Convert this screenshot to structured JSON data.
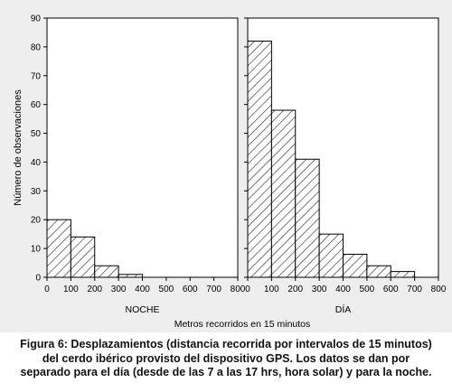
{
  "chart_data": {
    "type": "bar",
    "ylabel": "Número de observaciones",
    "xlabel": "Metros recorridos en 15 minutos",
    "ylim": [
      0,
      90
    ],
    "yticks": [
      0,
      10,
      20,
      30,
      40,
      50,
      60,
      70,
      80,
      90
    ],
    "xlim": [
      0,
      800
    ],
    "xticks": [
      0,
      100,
      200,
      300,
      400,
      500,
      600,
      700,
      800
    ],
    "xtick_labels": [
      "0",
      "100",
      "200",
      "300",
      "400",
      "500",
      "600",
      "700",
      "800"
    ],
    "bin_width": 100,
    "grid": false,
    "colors": {
      "bar_fill": "#ffffff",
      "hatch": "#222222",
      "background": "#eeeeee",
      "axis": "#000000"
    },
    "panels": [
      {
        "panel_label": "NOCHE",
        "bins": [
          {
            "x0": 0,
            "x1": 100,
            "value": 20
          },
          {
            "x0": 100,
            "x1": 200,
            "value": 14
          },
          {
            "x0": 200,
            "x1": 300,
            "value": 4
          },
          {
            "x0": 300,
            "x1": 400,
            "value": 1
          }
        ]
      },
      {
        "panel_label": "DÍA",
        "bins": [
          {
            "x0": 0,
            "x1": 100,
            "value": 82
          },
          {
            "x0": 100,
            "x1": 200,
            "value": 58
          },
          {
            "x0": 200,
            "x1": 300,
            "value": 41
          },
          {
            "x0": 300,
            "x1": 400,
            "value": 15
          },
          {
            "x0": 400,
            "x1": 500,
            "value": 8
          },
          {
            "x0": 500,
            "x1": 600,
            "value": 4
          },
          {
            "x0": 600,
            "x1": 700,
            "value": 2
          }
        ]
      }
    ]
  },
  "caption": {
    "line1": "Figura 6: Desplazamientos (distancia recorrida por intervalos de 15 minutos)",
    "line2": "del cerdo ibérico provisto del dispositivo GPS. Los datos se dan por",
    "line3": "separado para el día (desde de las 7 a las 17 hrs, hora solar) y para la noche."
  }
}
